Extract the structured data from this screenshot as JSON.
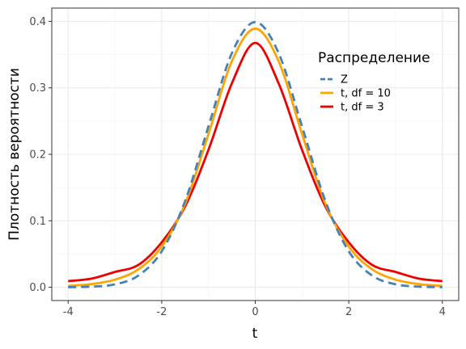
{
  "chart_data": {
    "type": "line",
    "title": "",
    "xlabel": "t",
    "ylabel": "Плотность вероятности",
    "xlim": [
      -4.35,
      4.35
    ],
    "ylim": [
      -0.02,
      0.42
    ],
    "x_ticks": [
      -4,
      -2,
      0,
      2,
      4
    ],
    "x_tick_labels": [
      "-4",
      "-2",
      "0",
      "2",
      "4"
    ],
    "y_ticks": [
      0.0,
      0.1,
      0.2,
      0.3,
      0.4
    ],
    "y_tick_labels": [
      "0.0",
      "0.1",
      "0.2",
      "0.3",
      "0.4"
    ],
    "grid": true,
    "legend": {
      "title": "Распределение",
      "placement": "inside-top-right"
    },
    "x": [
      -4,
      -3.5,
      -3,
      -2.5,
      -2,
      -1.5,
      -1,
      -0.5,
      0,
      0.5,
      1,
      1.5,
      2,
      2.5,
      3,
      3.5,
      4
    ],
    "series": [
      {
        "name": "Z",
        "color": "#4682b4",
        "dash": "dashed",
        "values": [
          0.0001,
          0.0009,
          0.0044,
          0.0175,
          0.054,
          0.1295,
          0.242,
          0.3521,
          0.3989,
          0.3521,
          0.242,
          0.1295,
          0.054,
          0.0175,
          0.0044,
          0.0009,
          0.0001
        ]
      },
      {
        "name": "t, df = 10",
        "color": "#ffa500",
        "dash": "solid",
        "values": [
          0.002,
          0.0047,
          0.0114,
          0.0269,
          0.0611,
          0.1254,
          0.2304,
          0.34,
          0.3891,
          0.34,
          0.2304,
          0.1254,
          0.0611,
          0.0269,
          0.0114,
          0.0047,
          0.002
        ]
      },
      {
        "name": "t, df = 3",
        "color": "#ee0000",
        "dash": "solid",
        "values": [
          0.0092,
          0.013,
          0.023,
          0.0335,
          0.0675,
          0.1215,
          0.2067,
          0.3067,
          0.3676,
          0.3067,
          0.2067,
          0.1215,
          0.0675,
          0.0335,
          0.023,
          0.013,
          0.0092
        ]
      }
    ]
  }
}
